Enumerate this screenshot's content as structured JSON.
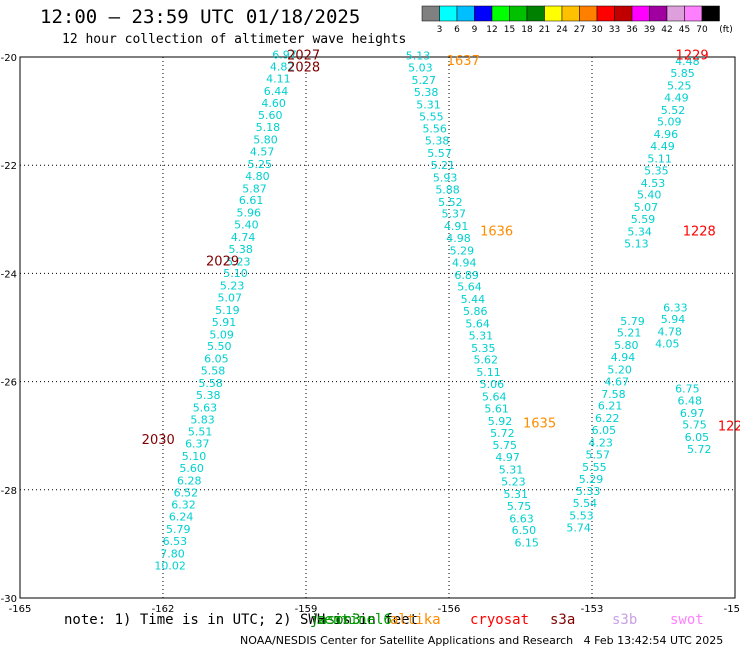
{
  "title": "12:00 – 23:59 UTC 01/18/2025",
  "subtitle": "12 hour collection of altimeter wave heights",
  "note": "note: 1) Time is in UTC; 2) SWH is in feet",
  "credit": "NOAA/NESDIS Center for Satellite Applications and Research",
  "timestamp": "4 Feb 13:42:54 UTC 2025",
  "colorbar": {
    "unit": "(ft)",
    "ticks": [
      "3",
      "6",
      "9",
      "12",
      "15",
      "18",
      "21",
      "24",
      "27",
      "30",
      "33",
      "36",
      "39",
      "42",
      "45",
      "70"
    ],
    "colors": [
      "#808080",
      "#00ffff",
      "#00bfff",
      "#0000ff",
      "#00ff00",
      "#00c000",
      "#008000",
      "#ffff00",
      "#ffc000",
      "#ff8000",
      "#ff0000",
      "#c00000",
      "#ff00ff",
      "#a000a0",
      "#dda0dd",
      "#ff80ff",
      "#000000"
    ]
  },
  "satellites": [
    {
      "name": "jason3",
      "color": "#008000"
    },
    {
      "name": "sentinel6",
      "color": "#00a000"
    },
    {
      "name": "altika",
      "color": "#ff8c00"
    },
    {
      "name": "cryosat",
      "color": "#ff0000"
    },
    {
      "name": "s3a",
      "color": "#800000"
    },
    {
      "name": "s3b",
      "color": "#c8a0e6"
    },
    {
      "name": "swot",
      "color": "#ff80ff"
    }
  ],
  "chart_data": {
    "type": "scatter",
    "xlim": [
      -165,
      -150
    ],
    "ylim": [
      -30,
      -20
    ],
    "x_ticks": [
      -165,
      -162,
      -159,
      -156,
      -153,
      -150
    ],
    "x_tick_labels": [
      "-165",
      "-162",
      "-159",
      "-156",
      "-153",
      "-150"
    ],
    "y_ticks": [
      -30,
      -28,
      -26,
      -24,
      -22,
      -20
    ],
    "y_tick_labels": [
      "-30",
      "-28",
      "-26",
      "-24",
      "-22",
      "-20"
    ],
    "grid": true,
    "track_labels": [
      {
        "text": "2027",
        "x": -159.05,
        "y": -20.05,
        "color": "#800000"
      },
      {
        "text": "2028",
        "x": -159.05,
        "y": -20.27,
        "color": "#800000"
      },
      {
        "text": "2029",
        "x": -160.75,
        "y": -23.85,
        "color": "#800000"
      },
      {
        "text": "2030",
        "x": -162.1,
        "y": -27.15,
        "color": "#800000"
      },
      {
        "text": "1637",
        "x": -155.7,
        "y": -20.15,
        "color": "#ff8c00"
      },
      {
        "text": "1636",
        "x": -155.0,
        "y": -23.3,
        "color": "#ff8c00"
      },
      {
        "text": "1635",
        "x": -154.1,
        "y": -26.85,
        "color": "#ff8c00"
      },
      {
        "text": "1229",
        "x": -150.9,
        "y": -20.05,
        "color": "#ff0000"
      },
      {
        "text": "1228",
        "x": -150.75,
        "y": -23.3,
        "color": "#ff0000"
      },
      {
        "text": "122",
        "x": -150.1,
        "y": -26.9,
        "color": "#ff0000"
      }
    ],
    "series": [
      {
        "name": "s3a",
        "color": "#00d0d0",
        "points": [
          {
            "x": -159.45,
            "y": -20.03,
            "v": "6.97"
          },
          {
            "x": -159.5,
            "y": -20.25,
            "v": "4.82"
          },
          {
            "x": -159.58,
            "y": -20.47,
            "v": "4.11"
          },
          {
            "x": -159.63,
            "y": -20.7,
            "v": "6.44"
          },
          {
            "x": -159.68,
            "y": -20.92,
            "v": "4.60"
          },
          {
            "x": -159.75,
            "y": -21.15,
            "v": "5.60"
          },
          {
            "x": -159.8,
            "y": -21.37,
            "v": "5.18"
          },
          {
            "x": -159.85,
            "y": -21.6,
            "v": "5.80"
          },
          {
            "x": -159.92,
            "y": -21.82,
            "v": "4.57"
          },
          {
            "x": -159.97,
            "y": -22.05,
            "v": "5.25"
          },
          {
            "x": -160.02,
            "y": -22.27,
            "v": "4.80"
          },
          {
            "x": -160.08,
            "y": -22.5,
            "v": "5.87"
          },
          {
            "x": -160.15,
            "y": -22.72,
            "v": "6.61"
          },
          {
            "x": -160.2,
            "y": -22.95,
            "v": "5.96"
          },
          {
            "x": -160.25,
            "y": -23.17,
            "v": "5.40"
          },
          {
            "x": -160.32,
            "y": -23.4,
            "v": "4.74"
          },
          {
            "x": -160.37,
            "y": -23.62,
            "v": "5.38"
          },
          {
            "x": -160.42,
            "y": -23.85,
            "v": "5.23"
          },
          {
            "x": -160.48,
            "y": -24.07,
            "v": "5.10"
          },
          {
            "x": -160.55,
            "y": -24.3,
            "v": "5.23"
          },
          {
            "x": -160.6,
            "y": -24.52,
            "v": "5.07"
          },
          {
            "x": -160.65,
            "y": -24.75,
            "v": "5.19"
          },
          {
            "x": -160.72,
            "y": -24.97,
            "v": "5.91"
          },
          {
            "x": -160.77,
            "y": -25.2,
            "v": "5.09"
          },
          {
            "x": -160.82,
            "y": -25.42,
            "v": "5.50"
          },
          {
            "x": -160.88,
            "y": -25.65,
            "v": "6.05"
          },
          {
            "x": -160.95,
            "y": -25.87,
            "v": "5.58"
          },
          {
            "x": -161.0,
            "y": -26.1,
            "v": "5.58"
          },
          {
            "x": -161.05,
            "y": -26.32,
            "v": "5.38"
          },
          {
            "x": -161.12,
            "y": -26.55,
            "v": "5.63"
          },
          {
            "x": -161.17,
            "y": -26.77,
            "v": "5.83"
          },
          {
            "x": -161.22,
            "y": -27.0,
            "v": "5.51"
          },
          {
            "x": -161.28,
            "y": -27.22,
            "v": "6.37"
          },
          {
            "x": -161.35,
            "y": -27.45,
            "v": "5.10"
          },
          {
            "x": -161.4,
            "y": -27.67,
            "v": "5.60"
          },
          {
            "x": -161.45,
            "y": -27.9,
            "v": "6.28"
          },
          {
            "x": -161.52,
            "y": -28.12,
            "v": "6.52"
          },
          {
            "x": -161.57,
            "y": -28.35,
            "v": "6.32"
          },
          {
            "x": -161.62,
            "y": -28.57,
            "v": "6.24"
          },
          {
            "x": -161.68,
            "y": -28.8,
            "v": "5.79"
          },
          {
            "x": -161.75,
            "y": -29.02,
            "v": "6.53"
          },
          {
            "x": -161.8,
            "y": -29.25,
            "v": "7.80"
          },
          {
            "x": -161.85,
            "y": -29.47,
            "v": "10.02"
          }
        ]
      },
      {
        "name": "altika",
        "color": "#00d0d0",
        "points": [
          {
            "x": -156.65,
            "y": -20.05,
            "v": "5.13"
          },
          {
            "x": -156.6,
            "y": -20.27,
            "v": "5.03"
          },
          {
            "x": -156.53,
            "y": -20.5,
            "v": "5.27"
          },
          {
            "x": -156.48,
            "y": -20.72,
            "v": "5.38"
          },
          {
            "x": -156.43,
            "y": -20.95,
            "v": "5.31"
          },
          {
            "x": -156.37,
            "y": -21.17,
            "v": "5.55"
          },
          {
            "x": -156.3,
            "y": -21.4,
            "v": "5.56"
          },
          {
            "x": -156.25,
            "y": -21.62,
            "v": "5.38"
          },
          {
            "x": -156.2,
            "y": -21.85,
            "v": "5.57"
          },
          {
            "x": -156.13,
            "y": -22.07,
            "v": "5.21"
          },
          {
            "x": -156.08,
            "y": -22.3,
            "v": "5.93"
          },
          {
            "x": -156.03,
            "y": -22.52,
            "v": "5.88"
          },
          {
            "x": -155.97,
            "y": -22.75,
            "v": "5.52"
          },
          {
            "x": -155.9,
            "y": -22.97,
            "v": "5.37"
          },
          {
            "x": -155.85,
            "y": -23.2,
            "v": "4.91"
          },
          {
            "x": -155.8,
            "y": -23.42,
            "v": "4.98"
          },
          {
            "x": -155.73,
            "y": -23.65,
            "v": "5.29"
          },
          {
            "x": -155.68,
            "y": -23.87,
            "v": "4.94"
          },
          {
            "x": -155.63,
            "y": -24.1,
            "v": "6.89"
          },
          {
            "x": -155.57,
            "y": -24.32,
            "v": "5.64"
          },
          {
            "x": -155.5,
            "y": -24.55,
            "v": "5.44"
          },
          {
            "x": -155.45,
            "y": -24.77,
            "v": "5.86"
          },
          {
            "x": -155.4,
            "y": -25.0,
            "v": "5.64"
          },
          {
            "x": -155.33,
            "y": -25.22,
            "v": "5.31"
          },
          {
            "x": -155.28,
            "y": -25.45,
            "v": "5.35"
          },
          {
            "x": -155.23,
            "y": -25.67,
            "v": "5.62"
          },
          {
            "x": -155.17,
            "y": -25.9,
            "v": "5.11"
          },
          {
            "x": -155.1,
            "y": -26.12,
            "v": "5.06"
          },
          {
            "x": -155.05,
            "y": -26.35,
            "v": "5.64"
          },
          {
            "x": -155.0,
            "y": -26.57,
            "v": "5.61"
          },
          {
            "x": -154.93,
            "y": -26.8,
            "v": "5.92"
          },
          {
            "x": -154.88,
            "y": -27.02,
            "v": "5.72"
          },
          {
            "x": -154.83,
            "y": -27.25,
            "v": "5.75"
          },
          {
            "x": -154.77,
            "y": -27.47,
            "v": "4.97"
          },
          {
            "x": -154.7,
            "y": -27.7,
            "v": "5.31"
          },
          {
            "x": -154.65,
            "y": -27.92,
            "v": "5.23"
          },
          {
            "x": -154.6,
            "y": -28.15,
            "v": "5.31"
          },
          {
            "x": -154.53,
            "y": -28.37,
            "v": "5.75"
          },
          {
            "x": -154.48,
            "y": -28.6,
            "v": "6.63"
          },
          {
            "x": -154.43,
            "y": -28.82,
            "v": "6.50"
          },
          {
            "x": -154.37,
            "y": -29.05,
            "v": "6.15"
          }
        ]
      },
      {
        "name": "cryosat",
        "color": "#00d0d0",
        "points": [
          {
            "x": -151.0,
            "y": -20.15,
            "v": "4.48"
          },
          {
            "x": -151.1,
            "y": -20.37,
            "v": "5.85"
          },
          {
            "x": -151.17,
            "y": -20.6,
            "v": "5.25"
          },
          {
            "x": -151.23,
            "y": -20.82,
            "v": "4.49"
          },
          {
            "x": -151.3,
            "y": -21.05,
            "v": "5.52"
          },
          {
            "x": -151.38,
            "y": -21.27,
            "v": "5.09"
          },
          {
            "x": -151.45,
            "y": -21.5,
            "v": "4.96"
          },
          {
            "x": -151.52,
            "y": -21.72,
            "v": "4.49"
          },
          {
            "x": -151.58,
            "y": -21.95,
            "v": "5.11"
          },
          {
            "x": -151.65,
            "y": -22.17,
            "v": "5.35"
          },
          {
            "x": -151.72,
            "y": -22.4,
            "v": "4.53"
          },
          {
            "x": -151.8,
            "y": -22.62,
            "v": "5.40"
          },
          {
            "x": -151.87,
            "y": -22.85,
            "v": "5.07"
          },
          {
            "x": -151.93,
            "y": -23.07,
            "v": "5.59"
          },
          {
            "x": -152.0,
            "y": -23.3,
            "v": "5.34"
          },
          {
            "x": -152.07,
            "y": -23.52,
            "v": "5.13"
          },
          {
            "x": -152.15,
            "y": -24.95,
            "v": "5.79"
          },
          {
            "x": -152.22,
            "y": -25.17,
            "v": "5.21"
          },
          {
            "x": -152.28,
            "y": -25.4,
            "v": "5.80"
          },
          {
            "x": -152.35,
            "y": -25.62,
            "v": "4.94"
          },
          {
            "x": -152.42,
            "y": -25.85,
            "v": "5.20"
          },
          {
            "x": -152.48,
            "y": -26.07,
            "v": "4.67"
          },
          {
            "x": -152.55,
            "y": -26.3,
            "v": "7.58"
          },
          {
            "x": -152.62,
            "y": -26.52,
            "v": "6.21"
          },
          {
            "x": -152.68,
            "y": -26.75,
            "v": "6.22"
          },
          {
            "x": -152.75,
            "y": -26.97,
            "v": "6.05"
          },
          {
            "x": -152.82,
            "y": -27.2,
            "v": "4.23"
          },
          {
            "x": -152.88,
            "y": -27.42,
            "v": "5.57"
          },
          {
            "x": -152.95,
            "y": -27.65,
            "v": "5.55"
          },
          {
            "x": -153.02,
            "y": -27.87,
            "v": "5.29"
          },
          {
            "x": -153.08,
            "y": -28.1,
            "v": "5.33"
          },
          {
            "x": -153.15,
            "y": -28.32,
            "v": "5.54"
          },
          {
            "x": -153.22,
            "y": -28.55,
            "v": "5.53"
          },
          {
            "x": -153.28,
            "y": -28.77,
            "v": "5.74"
          }
        ]
      },
      {
        "name": "s3b",
        "color": "#00d0d0",
        "points": [
          {
            "x": -151.25,
            "y": -24.7,
            "v": "6.33"
          },
          {
            "x": -151.3,
            "y": -24.92,
            "v": "5.94"
          },
          {
            "x": -151.37,
            "y": -25.15,
            "v": "4.78"
          },
          {
            "x": -151.42,
            "y": -25.37,
            "v": "4.05"
          }
        ]
      },
      {
        "name": "swot",
        "color": "#00d0d0",
        "points": [
          {
            "x": -151.0,
            "y": -26.2,
            "v": "6.75"
          },
          {
            "x": -150.95,
            "y": -26.42,
            "v": "6.48"
          },
          {
            "x": -150.9,
            "y": -26.65,
            "v": "6.97"
          },
          {
            "x": -150.85,
            "y": -26.87,
            "v": "5.75"
          },
          {
            "x": -150.8,
            "y": -27.1,
            "v": "6.05"
          },
          {
            "x": -150.75,
            "y": -27.32,
            "v": "5.72"
          }
        ]
      }
    ]
  }
}
